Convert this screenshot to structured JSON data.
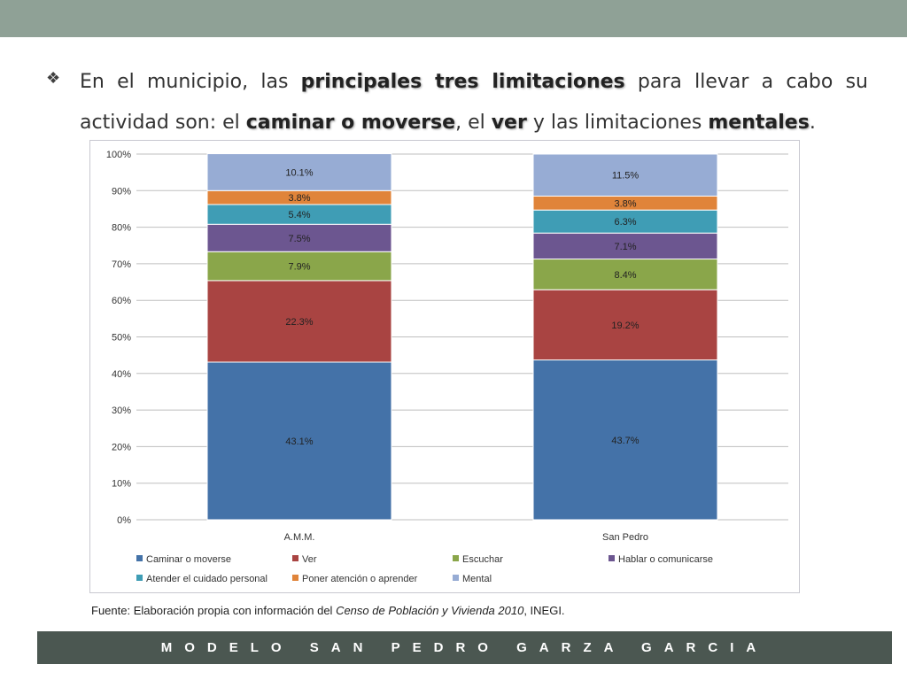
{
  "bullet": {
    "p1": "En el municipio, las ",
    "b1": "principales tres limitaciones",
    "p2": " para llevar a cabo su actividad son: el ",
    "b2": "caminar o moverse",
    "p3": ", el ",
    "b3": "ver",
    "p4": " y las limitaciones ",
    "b4": "mentales",
    "p5": "."
  },
  "source": {
    "prefix": "Fuente: Elaboración propia con información del ",
    "italic": "Censo de Población y Vivienda  2010",
    "suffix": ", INEGI."
  },
  "footer": {
    "text": "MODELO SAN PEDRO GARZA GARCIA"
  },
  "chart_data": {
    "type": "bar",
    "stacked": true,
    "categories": [
      "A.M.M.",
      "San Pedro"
    ],
    "yticks": [
      "0%",
      "10%",
      "20%",
      "30%",
      "40%",
      "50%",
      "60%",
      "70%",
      "80%",
      "90%",
      "100%"
    ],
    "ylim": [
      0,
      100
    ],
    "grid": true,
    "legend_position": "bottom",
    "series": [
      {
        "name": "Caminar o moverse",
        "values": [
          43.1,
          43.7
        ],
        "labels": [
          "43.1%",
          "43.7%"
        ],
        "color": "#4472a8"
      },
      {
        "name": "Ver",
        "values": [
          22.3,
          19.2
        ],
        "labels": [
          "22.3%",
          "19.2%"
        ],
        "color": "#a94442"
      },
      {
        "name": "Escuchar",
        "values": [
          7.9,
          8.4
        ],
        "labels": [
          "7.9%",
          "8.4%"
        ],
        "color": "#8aa64a"
      },
      {
        "name": "Hablar o comunicarse",
        "values": [
          7.5,
          7.1
        ],
        "labels": [
          "7.5%",
          "7.1%"
        ],
        "color": "#6c5690"
      },
      {
        "name": "Atender el cuidado personal",
        "values": [
          5.4,
          6.3
        ],
        "labels": [
          "5.4%",
          "6.3%"
        ],
        "color": "#3f9db5"
      },
      {
        "name": "Poner atención o aprender",
        "values": [
          3.8,
          3.8
        ],
        "labels": [
          "3.8%",
          "3.8%"
        ],
        "color": "#e0843a"
      },
      {
        "name": "Mental",
        "values": [
          10.1,
          11.5
        ],
        "labels": [
          "10.1%",
          "11.5%"
        ],
        "color": "#97acd4"
      }
    ]
  }
}
